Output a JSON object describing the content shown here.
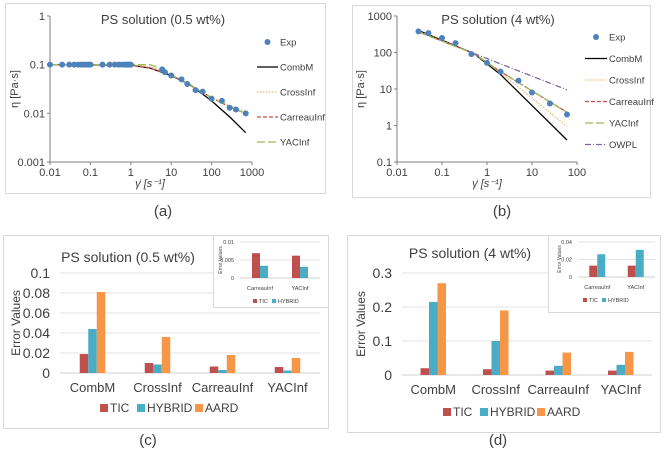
{
  "chart_data": [
    {
      "id": "a",
      "type": "line",
      "caption": "(a)",
      "title": "PS solution (0.5 wt%)",
      "xlabel": "γ̇  [s⁻¹]",
      "ylabel": "η [Pa·s]",
      "xscale": "log",
      "yscale": "log",
      "xlim": [
        0.01,
        1000
      ],
      "ylim": [
        0.001,
        1
      ],
      "xticks": [
        0.01,
        0.1,
        1,
        10,
        100,
        1000
      ],
      "xtick_labels": [
        "0.01",
        "0.1",
        "1",
        "10",
        "100",
        "1000"
      ],
      "yticks": [
        0.001,
        0.01,
        0.1,
        1
      ],
      "ytick_labels": [
        "0.001",
        "0.01",
        "0.1",
        "1"
      ],
      "legend_position": "right",
      "series": [
        {
          "name": "Exp",
          "kind": "marker",
          "color": "#4F81BD",
          "x": [
            0.01,
            0.02,
            0.03,
            0.04,
            0.05,
            0.06,
            0.07,
            0.08,
            0.09,
            0.1,
            0.2,
            0.3,
            0.4,
            0.5,
            0.6,
            0.7,
            0.8,
            0.9,
            1,
            6,
            7,
            10,
            18,
            25,
            40,
            60,
            100,
            180,
            280,
            400,
            700
          ],
          "y": [
            0.1,
            0.1,
            0.1,
            0.1,
            0.1,
            0.1,
            0.1,
            0.1,
            0.1,
            0.1,
            0.1,
            0.1,
            0.1,
            0.1,
            0.1,
            0.1,
            0.1,
            0.1,
            0.1,
            0.08,
            0.07,
            0.06,
            0.05,
            0.04,
            0.03,
            0.028,
            0.02,
            0.018,
            0.013,
            0.012,
            0.01
          ]
        },
        {
          "name": "CombM",
          "kind": "line",
          "color": "#000000",
          "dash": "",
          "x": [
            0.01,
            1,
            3,
            10,
            30,
            100,
            300,
            700
          ],
          "y": [
            0.1,
            0.098,
            0.085,
            0.06,
            0.038,
            0.018,
            0.008,
            0.004
          ]
        },
        {
          "name": "CrossInf",
          "kind": "line",
          "color": "#F5B97A",
          "dash": "1.5,1.5",
          "x": [
            0.01,
            1,
            3,
            10,
            30,
            100,
            300,
            700
          ],
          "y": [
            0.1,
            0.099,
            0.09,
            0.062,
            0.037,
            0.021,
            0.014,
            0.011
          ]
        },
        {
          "name": "CarreauInf",
          "kind": "line",
          "color": "#C0504D",
          "dash": "4,2",
          "x": [
            0.01,
            1,
            3,
            10,
            30,
            100,
            300,
            700
          ],
          "y": [
            0.1,
            0.097,
            0.085,
            0.061,
            0.038,
            0.021,
            0.013,
            0.01
          ]
        },
        {
          "name": "YACInf",
          "kind": "line",
          "color": "#9BBB59",
          "dash": "8,3",
          "x": [
            0.01,
            1,
            3,
            5,
            10,
            30,
            100,
            300,
            700
          ],
          "y": [
            0.1,
            0.1,
            0.1,
            0.085,
            0.062,
            0.037,
            0.021,
            0.013,
            0.01
          ]
        }
      ]
    },
    {
      "id": "b",
      "type": "line",
      "caption": "(b)",
      "title": "PS solution (4 wt%)",
      "xlabel": "γ̇ [s⁻¹]",
      "ylabel": "η [Pa·s]",
      "xscale": "log",
      "yscale": "log",
      "xlim": [
        0.01,
        100
      ],
      "ylim": [
        0.1,
        1000
      ],
      "xticks": [
        0.01,
        0.1,
        1,
        10,
        100
      ],
      "xtick_labels": [
        "0.01",
        "0.1",
        "1",
        "10",
        "100"
      ],
      "yticks": [
        0.1,
        1,
        10,
        100,
        1000
      ],
      "ytick_labels": [
        "0.1",
        "1",
        "10",
        "100",
        "1000"
      ],
      "legend_position": "right",
      "series": [
        {
          "name": "Exp",
          "kind": "marker",
          "color": "#4F81BD",
          "x": [
            0.03,
            0.05,
            0.1,
            0.2,
            0.45,
            1,
            2,
            5,
            10,
            25,
            60
          ],
          "y": [
            380,
            340,
            250,
            180,
            90,
            52,
            30,
            17,
            8,
            4,
            2
          ]
        },
        {
          "name": "CombM",
          "kind": "line",
          "color": "#000000",
          "dash": "",
          "x": [
            0.03,
            0.5,
            2,
            60
          ],
          "y": [
            400,
            95,
            25,
            0.4
          ]
        },
        {
          "name": "CrossInf",
          "kind": "line",
          "color": "#F5B97A",
          "dash": "1.5,1.5",
          "x": [
            0.03,
            0.5,
            2,
            60
          ],
          "y": [
            380,
            95,
            28,
            0.95
          ]
        },
        {
          "name": "CarreauInf",
          "kind": "line",
          "color": "#C0504D",
          "dash": "4,2",
          "x": [
            0.03,
            0.5,
            2,
            60
          ],
          "y": [
            370,
            95,
            30,
            2.3
          ]
        },
        {
          "name": "YACInf",
          "kind": "line",
          "color": "#9BBB59",
          "dash": "8,3",
          "x": [
            0.03,
            0.5,
            2,
            60
          ],
          "y": [
            360,
            95,
            30,
            2.3
          ]
        },
        {
          "name": "OWPL",
          "kind": "line",
          "color": "#8064A2",
          "dash": "6,2,1,2",
          "x": [
            0.5,
            60
          ],
          "y": [
            95,
            9.5
          ]
        }
      ]
    },
    {
      "id": "c",
      "type": "bar",
      "caption": "(c)",
      "title": "PS solution (0.5 wt%)",
      "ylabel": "Error Values",
      "categories": [
        "CombM",
        "CrossInf",
        "CarreauInf",
        "YACInf"
      ],
      "ylim": [
        0,
        0.1
      ],
      "yticks": [
        0,
        0.02,
        0.04,
        0.06,
        0.08,
        0.1
      ],
      "ytick_labels": [
        "0",
        "0.02",
        "0.04",
        "0.06",
        "0.08",
        "0.1"
      ],
      "legend_position": "bottom",
      "series": [
        {
          "name": "TIC",
          "color": "#C0504D",
          "values": [
            0.019,
            0.01,
            0.0065,
            0.006
          ]
        },
        {
          "name": "HYBRID",
          "color": "#4BACC6",
          "values": [
            0.044,
            0.0085,
            0.003,
            0.0025
          ]
        },
        {
          "name": "AARD",
          "color": "#F79646",
          "values": [
            0.081,
            0.036,
            0.018,
            0.015
          ]
        }
      ],
      "inset": {
        "ylabel": "Error Values",
        "categories": [
          "CarreauInf",
          "YACInf"
        ],
        "ylim": [
          0,
          0.01
        ],
        "yticks": [
          0,
          0.005,
          0.01
        ],
        "ytick_labels": [
          "0",
          "0.005",
          "0.01"
        ],
        "series": [
          {
            "name": "TIC",
            "color": "#C0504D",
            "values": [
              0.0069,
              0.0062
            ]
          },
          {
            "name": "HYBRID",
            "color": "#4BACC6",
            "values": [
              0.0034,
              0.0031
            ]
          }
        ]
      }
    },
    {
      "id": "d",
      "type": "bar",
      "caption": "(d)",
      "title": "PS solution (4 wt%)",
      "ylabel": "Error Values",
      "categories": [
        "CombM",
        "CrossInf",
        "CarreauInf",
        "YACInf"
      ],
      "ylim": [
        0,
        0.3
      ],
      "yticks": [
        0,
        0.1,
        0.2,
        0.3
      ],
      "ytick_labels": [
        "0",
        "0.1",
        "0.2",
        "0.3"
      ],
      "legend_position": "bottom",
      "series": [
        {
          "name": "TIC",
          "color": "#C0504D",
          "values": [
            0.02,
            0.017,
            0.013,
            0.013
          ]
        },
        {
          "name": "HYBRID",
          "color": "#4BACC6",
          "values": [
            0.215,
            0.1,
            0.027,
            0.03
          ]
        },
        {
          "name": "AARD",
          "color": "#F79646",
          "values": [
            0.27,
            0.19,
            0.066,
            0.068
          ]
        }
      ],
      "inset": {
        "ylabel": "Error Values",
        "categories": [
          "CarreauInf",
          "YACInf"
        ],
        "ylim": [
          0,
          0.04
        ],
        "yticks": [
          0,
          0.02,
          0.04
        ],
        "ytick_labels": [
          "0",
          "0.02",
          "0.04"
        ],
        "series": [
          {
            "name": "TIC",
            "color": "#C0504D",
            "values": [
              0.013,
              0.013
            ]
          },
          {
            "name": "HYBRID",
            "color": "#4BACC6",
            "values": [
              0.026,
              0.031
            ]
          }
        ]
      }
    }
  ]
}
